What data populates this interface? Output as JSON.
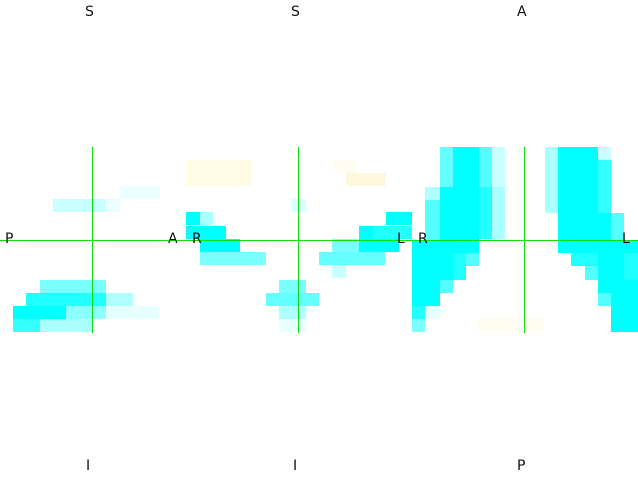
{
  "colors": {
    "background": "#ffffff",
    "crosshair": "#11dd11",
    "overlay_strong": "#00ffff",
    "overlay_light": "#c8ffff",
    "overlay_pale": "#fffbe4",
    "label": "#111111"
  },
  "views": {
    "sagittal": {
      "top": "S",
      "bottom": "I",
      "left": "P",
      "right": "A"
    },
    "coronal": {
      "top": "S",
      "bottom": "I",
      "left": "R",
      "right": "L"
    },
    "axial": {
      "top": "A",
      "bottom": "P",
      "left": "R",
      "right": "L"
    }
  }
}
